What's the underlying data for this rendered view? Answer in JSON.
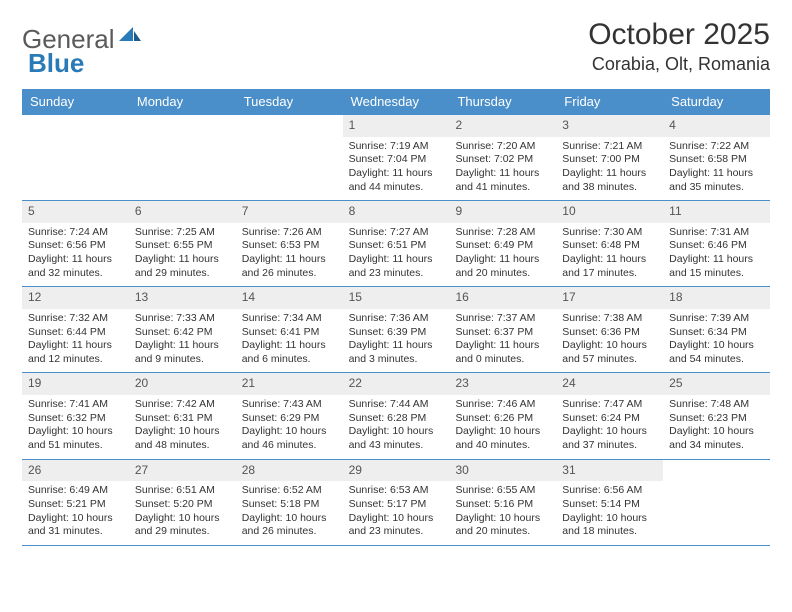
{
  "logo": {
    "text1": "General",
    "text2": "Blue"
  },
  "title": "October 2025",
  "location": "Corabia, Olt, Romania",
  "colors": {
    "header_bg": "#4a8fc9",
    "header_fg": "#ffffff",
    "daynum_bg": "#eeeeee",
    "border": "#4a8fc9",
    "logo_gray": "#5a5a5a",
    "logo_blue": "#2a7ab8"
  },
  "weekdays": [
    "Sunday",
    "Monday",
    "Tuesday",
    "Wednesday",
    "Thursday",
    "Friday",
    "Saturday"
  ],
  "weeks": [
    [
      {
        "empty": true
      },
      {
        "empty": true
      },
      {
        "empty": true
      },
      {
        "n": "1",
        "sr": "7:19 AM",
        "ss": "7:04 PM",
        "dl": "11 hours and 44 minutes."
      },
      {
        "n": "2",
        "sr": "7:20 AM",
        "ss": "7:02 PM",
        "dl": "11 hours and 41 minutes."
      },
      {
        "n": "3",
        "sr": "7:21 AM",
        "ss": "7:00 PM",
        "dl": "11 hours and 38 minutes."
      },
      {
        "n": "4",
        "sr": "7:22 AM",
        "ss": "6:58 PM",
        "dl": "11 hours and 35 minutes."
      }
    ],
    [
      {
        "n": "5",
        "sr": "7:24 AM",
        "ss": "6:56 PM",
        "dl": "11 hours and 32 minutes."
      },
      {
        "n": "6",
        "sr": "7:25 AM",
        "ss": "6:55 PM",
        "dl": "11 hours and 29 minutes."
      },
      {
        "n": "7",
        "sr": "7:26 AM",
        "ss": "6:53 PM",
        "dl": "11 hours and 26 minutes."
      },
      {
        "n": "8",
        "sr": "7:27 AM",
        "ss": "6:51 PM",
        "dl": "11 hours and 23 minutes."
      },
      {
        "n": "9",
        "sr": "7:28 AM",
        "ss": "6:49 PM",
        "dl": "11 hours and 20 minutes."
      },
      {
        "n": "10",
        "sr": "7:30 AM",
        "ss": "6:48 PM",
        "dl": "11 hours and 17 minutes."
      },
      {
        "n": "11",
        "sr": "7:31 AM",
        "ss": "6:46 PM",
        "dl": "11 hours and 15 minutes."
      }
    ],
    [
      {
        "n": "12",
        "sr": "7:32 AM",
        "ss": "6:44 PM",
        "dl": "11 hours and 12 minutes."
      },
      {
        "n": "13",
        "sr": "7:33 AM",
        "ss": "6:42 PM",
        "dl": "11 hours and 9 minutes."
      },
      {
        "n": "14",
        "sr": "7:34 AM",
        "ss": "6:41 PM",
        "dl": "11 hours and 6 minutes."
      },
      {
        "n": "15",
        "sr": "7:36 AM",
        "ss": "6:39 PM",
        "dl": "11 hours and 3 minutes."
      },
      {
        "n": "16",
        "sr": "7:37 AM",
        "ss": "6:37 PM",
        "dl": "11 hours and 0 minutes."
      },
      {
        "n": "17",
        "sr": "7:38 AM",
        "ss": "6:36 PM",
        "dl": "10 hours and 57 minutes."
      },
      {
        "n": "18",
        "sr": "7:39 AM",
        "ss": "6:34 PM",
        "dl": "10 hours and 54 minutes."
      }
    ],
    [
      {
        "n": "19",
        "sr": "7:41 AM",
        "ss": "6:32 PM",
        "dl": "10 hours and 51 minutes."
      },
      {
        "n": "20",
        "sr": "7:42 AM",
        "ss": "6:31 PM",
        "dl": "10 hours and 48 minutes."
      },
      {
        "n": "21",
        "sr": "7:43 AM",
        "ss": "6:29 PM",
        "dl": "10 hours and 46 minutes."
      },
      {
        "n": "22",
        "sr": "7:44 AM",
        "ss": "6:28 PM",
        "dl": "10 hours and 43 minutes."
      },
      {
        "n": "23",
        "sr": "7:46 AM",
        "ss": "6:26 PM",
        "dl": "10 hours and 40 minutes."
      },
      {
        "n": "24",
        "sr": "7:47 AM",
        "ss": "6:24 PM",
        "dl": "10 hours and 37 minutes."
      },
      {
        "n": "25",
        "sr": "7:48 AM",
        "ss": "6:23 PM",
        "dl": "10 hours and 34 minutes."
      }
    ],
    [
      {
        "n": "26",
        "sr": "6:49 AM",
        "ss": "5:21 PM",
        "dl": "10 hours and 31 minutes."
      },
      {
        "n": "27",
        "sr": "6:51 AM",
        "ss": "5:20 PM",
        "dl": "10 hours and 29 minutes."
      },
      {
        "n": "28",
        "sr": "6:52 AM",
        "ss": "5:18 PM",
        "dl": "10 hours and 26 minutes."
      },
      {
        "n": "29",
        "sr": "6:53 AM",
        "ss": "5:17 PM",
        "dl": "10 hours and 23 minutes."
      },
      {
        "n": "30",
        "sr": "6:55 AM",
        "ss": "5:16 PM",
        "dl": "10 hours and 20 minutes."
      },
      {
        "n": "31",
        "sr": "6:56 AM",
        "ss": "5:14 PM",
        "dl": "10 hours and 18 minutes."
      },
      {
        "empty": true
      }
    ]
  ],
  "labels": {
    "sunrise": "Sunrise:",
    "sunset": "Sunset:",
    "daylight": "Daylight:"
  }
}
